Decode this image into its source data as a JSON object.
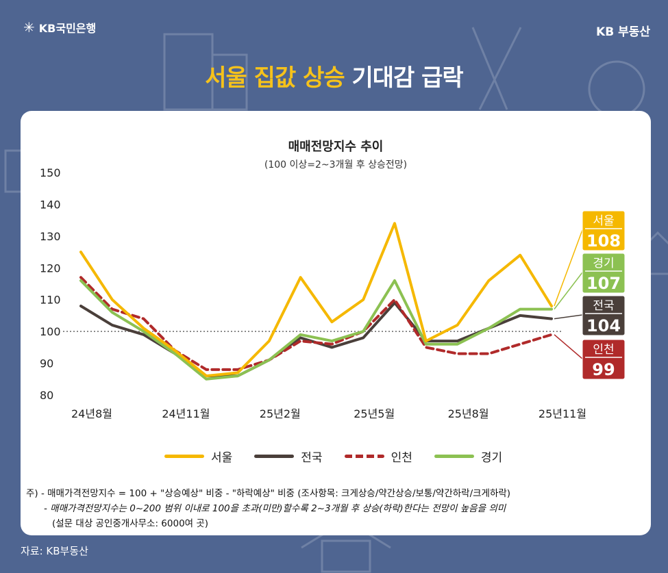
{
  "brand": {
    "bank_name": "KB국민은행",
    "bank_symbol": "✳",
    "right_logo": "KB 부동산"
  },
  "headline": {
    "highlight": "서울 집값 상승",
    "rest": " 기대감 급락"
  },
  "notes": {
    "line1": "주) - 매매가격전망지수 = 100 + \"상승예상\" 비중 - \"하락예상\" 비중 (조사항목: 크게상승/약간상승/보통/약간하락/크게하락)",
    "line2": "- 매매가격전망지수는 0~200 범위 이내로 100을 초과(미만)할수록 2~3개월 후 상승(하락)한다는 전망이 높음을 의미",
    "line3": "(설문 대상 공인중개사무소: 6000여 곳)"
  },
  "source": "자료: KB부동산",
  "chart_data": {
    "type": "line",
    "title": "매매전망지수 추이",
    "subtitle": "(100 이상=2~3개월 후 상승전망)",
    "ylim": [
      80,
      150
    ],
    "yticks": [
      80,
      90,
      100,
      110,
      120,
      130,
      140,
      150
    ],
    "reference_line": 100,
    "x_labels": [
      {
        "index": 0,
        "label": "24년8월"
      },
      {
        "index": 3,
        "label": "24년11월"
      },
      {
        "index": 6,
        "label": "25년2월"
      },
      {
        "index": 9,
        "label": "25년5월"
      },
      {
        "index": 12,
        "label": "25년8월"
      },
      {
        "index": 15,
        "label": "25년11월"
      }
    ],
    "series": [
      {
        "name": "서울",
        "color": "#f5b800",
        "style": "solid",
        "values": [
          125,
          110,
          101,
          94,
          86,
          87,
          97,
          117,
          103,
          110,
          134,
          97,
          102,
          116,
          124,
          108
        ]
      },
      {
        "name": "전국",
        "color": "#4a3f3a",
        "style": "solid",
        "values": [
          108,
          102,
          99,
          93,
          86,
          86,
          91,
          98,
          95,
          98,
          109,
          97,
          97,
          101,
          105,
          104
        ]
      },
      {
        "name": "인천",
        "color": "#b02a2a",
        "style": "dashed",
        "values": [
          117,
          107,
          104,
          94,
          88,
          88,
          91,
          97,
          96,
          100,
          110,
          95,
          93,
          93,
          96,
          99
        ]
      },
      {
        "name": "경기",
        "color": "#8cc152",
        "style": "solid",
        "values": [
          116,
          106,
          100,
          93,
          85,
          86,
          91,
          99,
          97,
          100,
          116,
          96,
          96,
          101,
          107,
          107
        ]
      }
    ],
    "end_labels": [
      {
        "name": "서울",
        "value": "108",
        "color": "#f5b800"
      },
      {
        "name": "경기",
        "value": "107",
        "color": "#8cc152"
      },
      {
        "name": "전국",
        "value": "104",
        "color": "#4a3f3a"
      },
      {
        "name": "인천",
        "value": "99",
        "color": "#b02a2a"
      }
    ]
  }
}
